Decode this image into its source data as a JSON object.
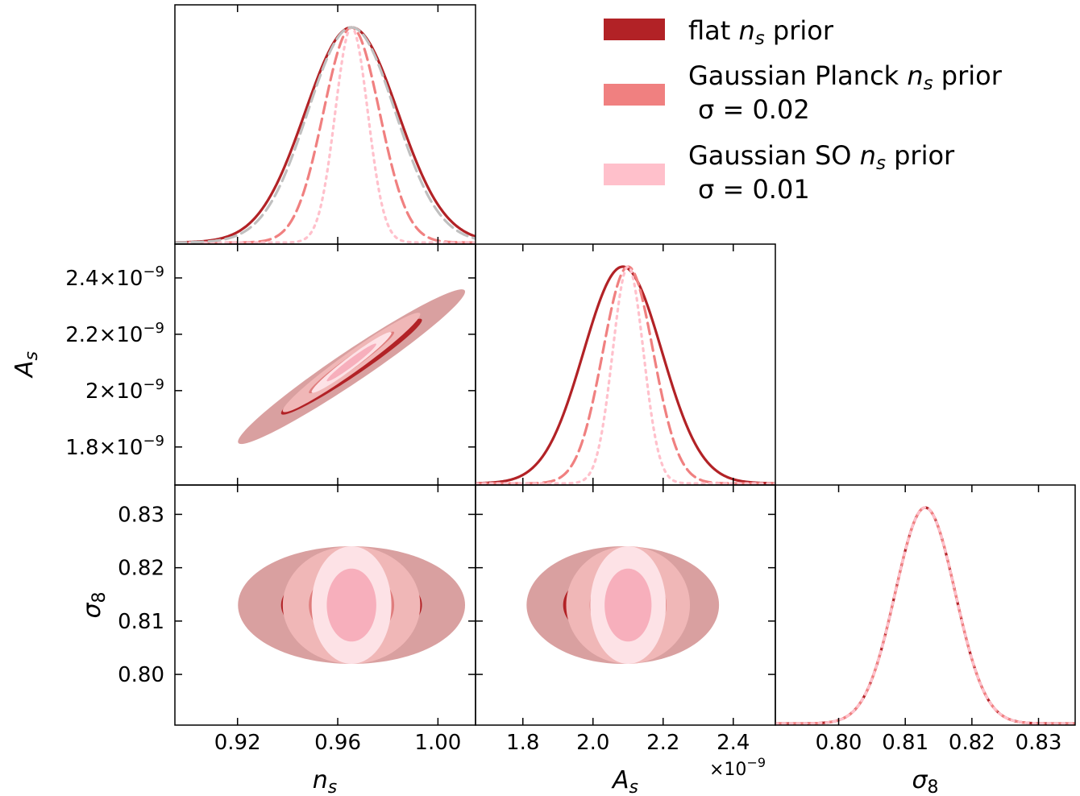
{
  "chart_data": {
    "type": "triangle",
    "legend": {
      "entries": [
        {
          "id": "flat",
          "line1": "flat",
          "line1_var": "n",
          "line1_sub": "s",
          "line1_tail": "prior",
          "line2": "",
          "color": "#b22226"
        },
        {
          "id": "planck",
          "line1": "Gaussian Planck",
          "line1_var": "n",
          "line1_sub": "s",
          "line1_tail": "prior",
          "line2": "σ = 0.02",
          "color": "#f08080"
        },
        {
          "id": "so",
          "line1": "Gaussian SO",
          "line1_var": "n",
          "line1_sub": "s",
          "line1_tail": "prior",
          "line2": "σ = 0.01",
          "color": "#ffc0cb"
        }
      ],
      "placement": "top-right"
    },
    "parameters": [
      {
        "id": "ns",
        "symbol": "n",
        "sub": "s",
        "range": [
          0.895,
          1.015
        ],
        "ticks": [
          0.92,
          0.96,
          1.0
        ],
        "tick_labels": [
          "0.92",
          "0.96",
          "1.00"
        ]
      },
      {
        "id": "As",
        "symbol": "A",
        "sub": "s",
        "range": [
          1.665,
          2.52
        ],
        "ticks": [
          1.8,
          2.0,
          2.2,
          2.4
        ],
        "tick_labels": [
          "1.8",
          "2.0",
          "2.2",
          "2.4"
        ],
        "y_tick_labels": [
          "1.8×10",
          "2×10",
          "2.2×10",
          "2.4×10"
        ],
        "exponent": "−9",
        "offset_text": "×10"
      },
      {
        "id": "sigma8",
        "symbol": "σ",
        "sub": "8",
        "range": [
          0.7905,
          0.8355
        ],
        "ticks": [
          0.8,
          0.81,
          0.82,
          0.83
        ],
        "tick_labels": [
          "0.80",
          "0.81",
          "0.82",
          "0.83"
        ]
      }
    ],
    "series": [
      {
        "name": "flat n_s prior",
        "color": "#b22226",
        "dash": "solid",
        "ns": {
          "mean": 0.9655,
          "sd": 0.0185
        },
        "As": {
          "mean": 2.085,
          "sd": 0.112
        },
        "sigma8": {
          "mean": 0.813,
          "sd": 0.0045
        },
        "fill_1sigma": "#b22226",
        "fill_2sigma": "#d9a0a0"
      },
      {
        "name": "Gaussian Planck n_s prior",
        "color": "#f08080",
        "dash": "dashed",
        "ns": {
          "mean": 0.9655,
          "sd": 0.0112
        },
        "As": {
          "mean": 2.1,
          "sd": 0.072
        },
        "sigma8": {
          "mean": 0.813,
          "sd": 0.0045
        },
        "fill_1sigma": "#df7d7d",
        "fill_2sigma": "#f0b7b7"
      },
      {
        "name": "Gaussian SO n_s prior",
        "color": "#ffc0cb",
        "dash": "dotted",
        "ns": {
          "mean": 0.9655,
          "sd": 0.0065
        },
        "As": {
          "mean": 2.1,
          "sd": 0.044
        },
        "sigma8": {
          "mean": 0.813,
          "sd": 0.0045
        },
        "fill_1sigma": "#f7afbc",
        "fill_2sigma": "#fde2e6"
      },
      {
        "name": "",
        "color": "#c0c0c0",
        "dash": "dashed",
        "panel": "ns",
        "ns": {
          "mean": 0.9655,
          "sd": 0.0175
        }
      }
    ],
    "correlation": {
      "ns_As": 0.97,
      "ns_sigma8": 0.0,
      "As_sigma8": 0.0
    },
    "grid": false
  }
}
